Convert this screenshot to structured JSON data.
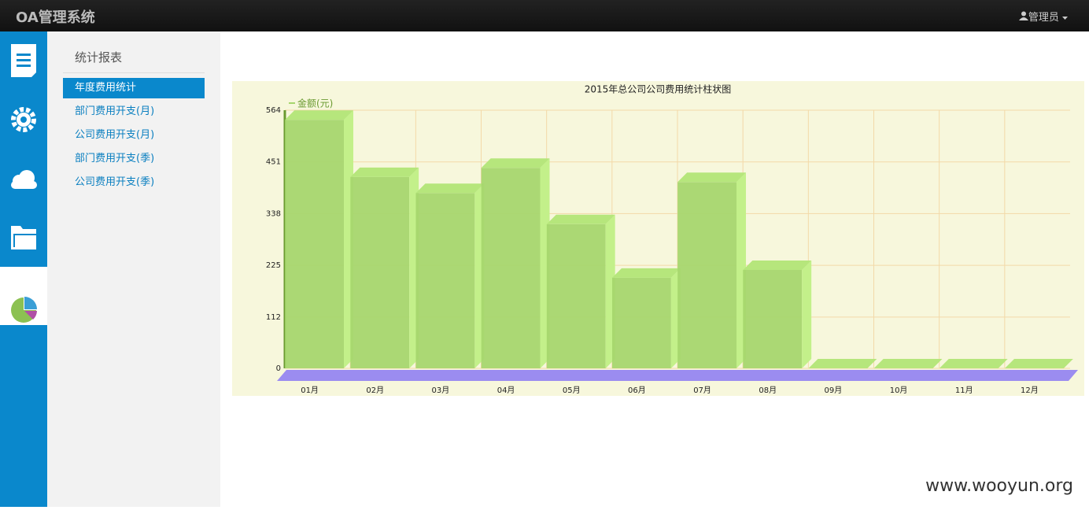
{
  "header": {
    "title": "OA管理系统",
    "user": "管理员"
  },
  "sidebar": {
    "title": "统计报表",
    "items": [
      "年度费用统计",
      "部门费用开支(月)",
      "公司费用开支(月)",
      "部门费用开支(季)",
      "公司费用开支(季)"
    ]
  },
  "watermark": "www.wooyun.org",
  "chart_data": {
    "type": "bar",
    "title": "2015年总公司公司费用统计柱状图",
    "categories": [
      "01月",
      "02月",
      "03月",
      "04月",
      "05月",
      "06月",
      "07月",
      "08月",
      "09月",
      "10月",
      "11月",
      "12月"
    ],
    "series": [
      {
        "name": "金额(元)",
        "color": "#a6d66e",
        "values": [
          543,
          418,
          383,
          438,
          315,
          198,
          407,
          215,
          0,
          0,
          0,
          0
        ]
      }
    ],
    "ylim": [
      0,
      564
    ],
    "yticks": [
      0,
      112,
      225,
      338,
      451,
      564
    ],
    "grid": true
  }
}
